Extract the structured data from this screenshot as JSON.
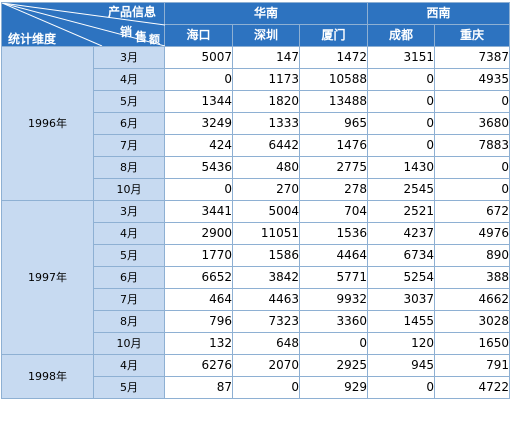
{
  "header": {
    "dimension_label": "统计维度",
    "product_info_label": "产品信息",
    "sales_label_1": "销",
    "sales_label_2": "售",
    "sales_label_3": "额",
    "regions": [
      {
        "name": "华南",
        "cities": [
          "海口",
          "深圳",
          "厦门"
        ]
      },
      {
        "name": "西南",
        "cities": [
          "成都",
          "重庆"
        ]
      }
    ]
  },
  "years": [
    {
      "year": "1996年",
      "rows": [
        {
          "month": "3月",
          "values": [
            "5007",
            "147",
            "1472",
            "3151",
            "7387"
          ]
        },
        {
          "month": "4月",
          "values": [
            "0",
            "1173",
            "10588",
            "0",
            "4935"
          ]
        },
        {
          "month": "5月",
          "values": [
            "1344",
            "1820",
            "13488",
            "0",
            "0"
          ]
        },
        {
          "month": "6月",
          "values": [
            "3249",
            "1333",
            "965",
            "0",
            "3680"
          ]
        },
        {
          "month": "7月",
          "values": [
            "424",
            "6442",
            "1476",
            "0",
            "7883"
          ]
        },
        {
          "month": "8月",
          "values": [
            "5436",
            "480",
            "2775",
            "1430",
            "0"
          ]
        },
        {
          "month": "10月",
          "values": [
            "0",
            "270",
            "278",
            "2545",
            "0"
          ]
        }
      ]
    },
    {
      "year": "1997年",
      "rows": [
        {
          "month": "3月",
          "values": [
            "3441",
            "5004",
            "704",
            "2521",
            "672"
          ]
        },
        {
          "month": "4月",
          "values": [
            "2900",
            "11051",
            "1536",
            "4237",
            "4976"
          ]
        },
        {
          "month": "5月",
          "values": [
            "1770",
            "1586",
            "4464",
            "6734",
            "890"
          ]
        },
        {
          "month": "6月",
          "values": [
            "6652",
            "3842",
            "5771",
            "5254",
            "388"
          ]
        },
        {
          "month": "7月",
          "values": [
            "464",
            "4463",
            "9932",
            "3037",
            "4662"
          ]
        },
        {
          "month": "8月",
          "values": [
            "796",
            "7323",
            "3360",
            "1455",
            "3028"
          ]
        },
        {
          "month": "10月",
          "values": [
            "132",
            "648",
            "0",
            "120",
            "1650"
          ]
        }
      ]
    },
    {
      "year": "1998年",
      "rows": [
        {
          "month": "4月",
          "values": [
            "6276",
            "2070",
            "2925",
            "945",
            "791"
          ]
        },
        {
          "month": "5月",
          "values": [
            "87",
            "0",
            "929",
            "0",
            "4722"
          ]
        }
      ]
    }
  ],
  "colors": {
    "header_bg": "#2d73c0",
    "label_bg": "#c7daf1",
    "border": "#8eb0d3"
  }
}
